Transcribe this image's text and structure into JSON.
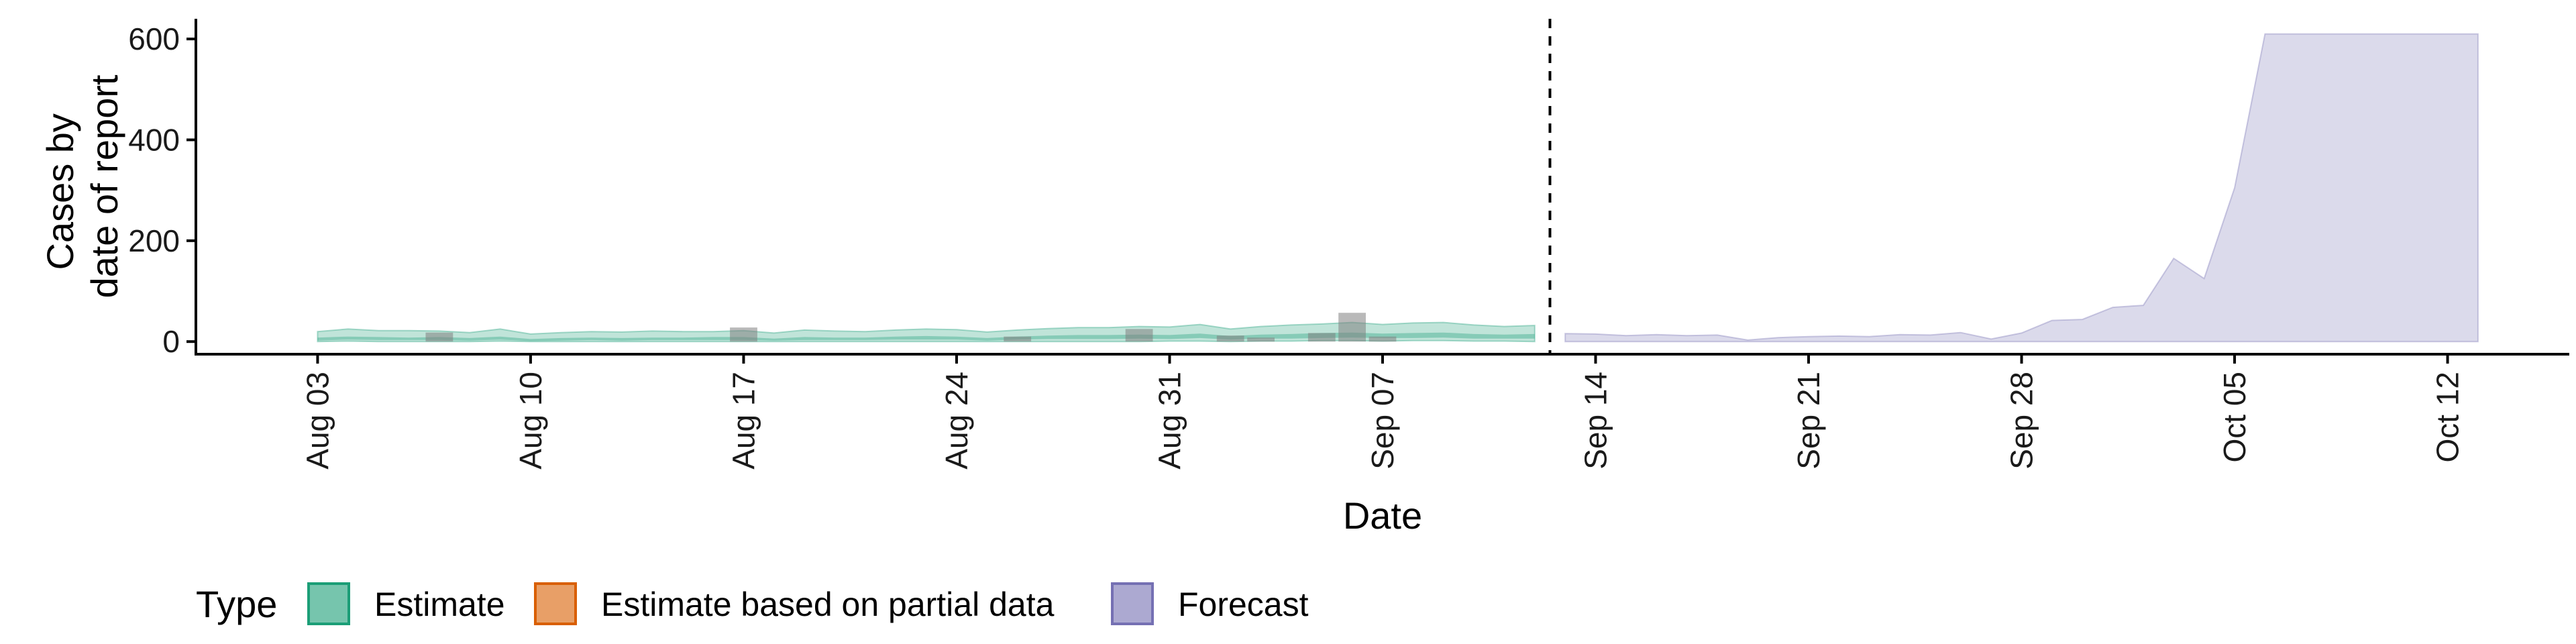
{
  "chart_data": {
    "type": "area",
    "xlabel": "Date",
    "ylabel_lines": [
      "Cases by",
      "date of report"
    ],
    "xlim": [
      "2020-07-30",
      "2020-10-16"
    ],
    "ylim": [
      -25,
      640
    ],
    "y_ticks": [
      0,
      200,
      400,
      600
    ],
    "x_ticks": [
      {
        "date": "2020-08-03",
        "label": "Aug 03"
      },
      {
        "date": "2020-08-10",
        "label": "Aug 10"
      },
      {
        "date": "2020-08-17",
        "label": "Aug 17"
      },
      {
        "date": "2020-08-24",
        "label": "Aug 24"
      },
      {
        "date": "2020-08-31",
        "label": "Aug 31"
      },
      {
        "date": "2020-09-07",
        "label": "Sep 07"
      },
      {
        "date": "2020-09-14",
        "label": "Sep 14"
      },
      {
        "date": "2020-09-21",
        "label": "Sep 21"
      },
      {
        "date": "2020-09-28",
        "label": "Sep 28"
      },
      {
        "date": "2020-10-05",
        "label": "Oct 05"
      },
      {
        "date": "2020-10-12",
        "label": "Oct 12"
      }
    ],
    "forecast_start": "2020-09-13",
    "legend": {
      "title": "Type",
      "position": "bottom-left",
      "entries": [
        {
          "label": "Estimate",
          "fill": "#1b9e77",
          "stroke": "#1b9e77"
        },
        {
          "label": "Estimate based on partial data",
          "fill": "#d95f02",
          "stroke": "#d95f02"
        },
        {
          "label": "Forecast",
          "fill": "#7570b3",
          "stroke": "#7570b3"
        }
      ]
    },
    "colors": {
      "estimate": "#1b9e77",
      "forecast": "#7570b3",
      "observed_bars": "#7f7f7f",
      "axis": "#000000"
    },
    "series": [
      {
        "type_label": "Estimate",
        "dates": [
          "2020-08-03",
          "2020-08-04",
          "2020-08-05",
          "2020-08-06",
          "2020-08-07",
          "2020-08-08",
          "2020-08-09",
          "2020-08-10",
          "2020-08-11",
          "2020-08-12",
          "2020-08-13",
          "2020-08-14",
          "2020-08-15",
          "2020-08-16",
          "2020-08-17",
          "2020-08-18",
          "2020-08-19",
          "2020-08-20",
          "2020-08-21",
          "2020-08-22",
          "2020-08-23",
          "2020-08-24",
          "2020-08-25",
          "2020-08-26",
          "2020-08-27",
          "2020-08-28",
          "2020-08-29",
          "2020-08-30",
          "2020-08-31",
          "2020-09-01",
          "2020-09-02",
          "2020-09-03",
          "2020-09-04",
          "2020-09-05",
          "2020-09-06",
          "2020-09-07",
          "2020-09-08",
          "2020-09-09",
          "2020-09-10",
          "2020-09-11",
          "2020-09-12"
        ],
        "upper90": [
          20,
          25,
          22,
          22,
          21,
          18,
          25,
          15,
          18,
          20,
          19,
          21,
          20,
          20,
          22,
          17,
          23,
          21,
          20,
          23,
          25,
          24,
          19,
          23,
          26,
          28,
          28,
          30,
          29,
          34,
          25,
          30,
          33,
          35,
          38,
          34,
          37,
          38,
          33,
          30,
          32
        ],
        "lower90": [
          0,
          1,
          0,
          0,
          0,
          0,
          1,
          0,
          0,
          0,
          0,
          0,
          0,
          0,
          0,
          0,
          0,
          0,
          0,
          0,
          0,
          0,
          0,
          0,
          0,
          0,
          0,
          0,
          1,
          1,
          0,
          1,
          1,
          2,
          2,
          1,
          2,
          2,
          1,
          1,
          0
        ],
        "upper50": [
          8,
          10,
          9,
          8,
          9,
          7,
          10,
          5,
          7,
          8,
          7,
          8,
          8,
          9,
          9,
          6,
          9,
          8,
          8,
          10,
          11,
          10,
          7,
          10,
          12,
          13,
          13,
          14,
          13,
          16,
          11,
          14,
          15,
          17,
          18,
          16,
          17,
          18,
          15,
          14,
          15
        ],
        "lower50": [
          2,
          4,
          3,
          3,
          3,
          2,
          4,
          1,
          2,
          3,
          2,
          3,
          3,
          3,
          3,
          2,
          3,
          3,
          3,
          4,
          4,
          4,
          2,
          4,
          5,
          5,
          5,
          6,
          5,
          7,
          4,
          6,
          6,
          7,
          8,
          7,
          7,
          8,
          6,
          6,
          6
        ]
      },
      {
        "type_label": "Forecast",
        "dates": [
          "2020-09-13",
          "2020-09-14",
          "2020-09-15",
          "2020-09-16",
          "2020-09-17",
          "2020-09-18",
          "2020-09-19",
          "2020-09-20",
          "2020-09-21",
          "2020-09-22",
          "2020-09-23",
          "2020-09-24",
          "2020-09-25",
          "2020-09-26",
          "2020-09-27",
          "2020-09-28",
          "2020-09-29",
          "2020-09-30",
          "2020-10-01",
          "2020-10-02",
          "2020-10-03",
          "2020-10-04",
          "2020-10-05",
          "2020-10-06",
          "2020-10-07",
          "2020-10-08",
          "2020-10-09",
          "2020-10-10",
          "2020-10-11",
          "2020-10-12",
          "2020-10-13"
        ],
        "upper90": [
          16,
          15,
          12,
          14,
          12,
          13,
          3,
          8,
          10,
          11,
          10,
          14,
          13,
          18,
          5,
          17,
          42,
          44,
          68,
          72,
          165,
          125,
          305,
          610,
          610,
          610,
          610,
          610,
          610,
          610,
          610
        ],
        "lower90": [
          0,
          0,
          0,
          0,
          0,
          0,
          0,
          0,
          0,
          0,
          0,
          0,
          0,
          0,
          0,
          0,
          0,
          0,
          0,
          0,
          0,
          0,
          0,
          0,
          0,
          0,
          0,
          0,
          0,
          0,
          0
        ]
      }
    ],
    "observed": {
      "dates": [
        "2020-08-07",
        "2020-08-17",
        "2020-08-26",
        "2020-08-30",
        "2020-09-02",
        "2020-09-03",
        "2020-09-05",
        "2020-09-06",
        "2020-09-07"
      ],
      "values": [
        18,
        28,
        10,
        25,
        12,
        8,
        17,
        57,
        10
      ]
    }
  }
}
